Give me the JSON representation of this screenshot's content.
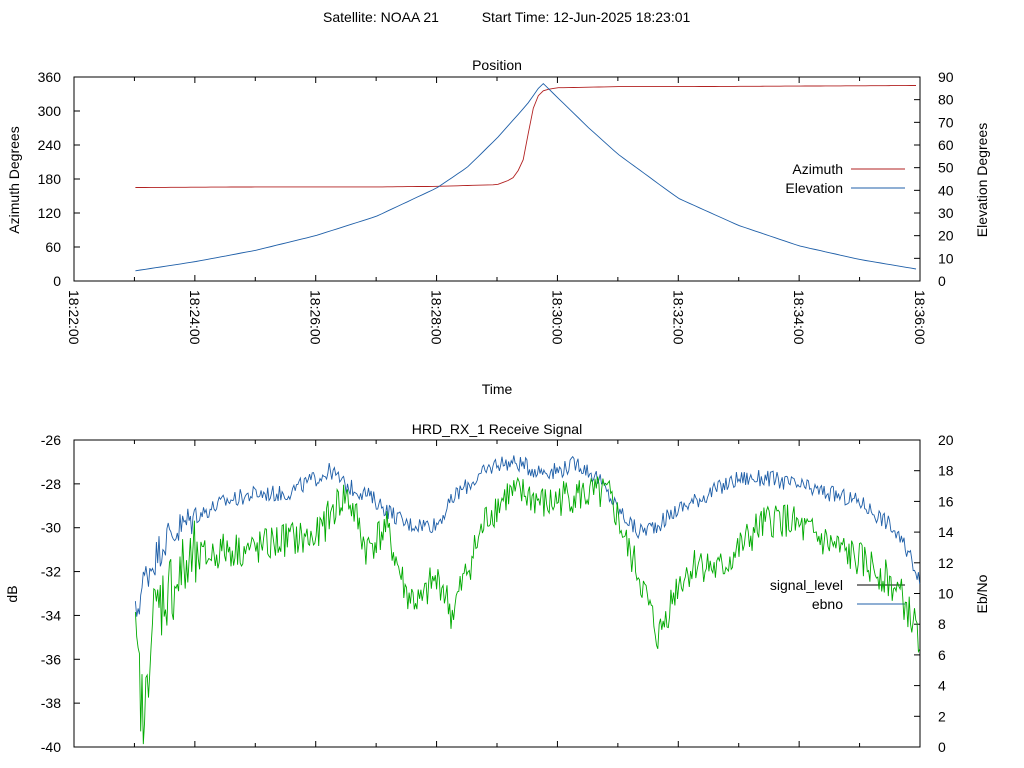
{
  "header": {
    "satellite": "Satellite: NOAA 21",
    "start_time": "Start Time: 12-Jun-2025 18:23:01"
  },
  "chart_data": [
    {
      "type": "line",
      "title": "Position",
      "xlabel": "Time",
      "ylabel": "Azimuth Degrees",
      "y2label": "Elevation Degrees",
      "xlim": [
        "18:22:00",
        "18:36:00"
      ],
      "ylim": [
        0,
        360
      ],
      "y2lim": [
        0,
        90
      ],
      "x_ticks": [
        "18:22:00",
        "18:24:00",
        "18:26:00",
        "18:28:00",
        "18:30:00",
        "18:32:00",
        "18:34:00",
        "18:36:00"
      ],
      "y_ticks": [
        "0",
        "60",
        "120",
        "180",
        "240",
        "300",
        "360"
      ],
      "y2_ticks": [
        "0",
        "10",
        "20",
        "30",
        "40",
        "50",
        "60",
        "70",
        "80",
        "90"
      ],
      "legend_position": "right",
      "series": [
        {
          "name": "Azimuth",
          "axis": "y",
          "color": "#b22222",
          "x": [
            "18:23:01",
            "18:25:00",
            "18:27:00",
            "18:28:00",
            "18:29:00",
            "18:29:15",
            "18:29:25",
            "18:29:30",
            "18:29:35",
            "18:29:40",
            "18:29:45",
            "18:29:50",
            "18:30:00",
            "18:30:30",
            "18:31:00",
            "18:32:00",
            "18:34:00",
            "18:36:00"
          ],
          "values": [
            165,
            166,
            166,
            167,
            170,
            180,
            205,
            250,
            300,
            325,
            335,
            338,
            341,
            342,
            343,
            343,
            344,
            345
          ]
        },
        {
          "name": "Elevation",
          "axis": "y2",
          "color": "#1f5fa8",
          "x": [
            "18:23:01",
            "18:24:00",
            "18:25:00",
            "18:26:00",
            "18:27:00",
            "18:28:00",
            "18:28:30",
            "18:29:00",
            "18:29:30",
            "18:29:45",
            "18:30:00",
            "18:30:30",
            "18:31:00",
            "18:32:00",
            "18:33:00",
            "18:34:00",
            "18:35:00",
            "18:36:00"
          ],
          "values": [
            4.5,
            8.5,
            13.5,
            20,
            28.5,
            41,
            50,
            63,
            78,
            87.5,
            81,
            68,
            56,
            36.5,
            24.5,
            15.5,
            9.5,
            5
          ]
        }
      ]
    },
    {
      "type": "line",
      "title": "HRD_RX_1 Receive Signal",
      "ylabel": "dB",
      "y2label": "Eb/No",
      "xlim": [
        "18:22:00",
        "18:36:00"
      ],
      "ylim": [
        -40,
        -26
      ],
      "y2lim": [
        0,
        20
      ],
      "y_ticks": [
        "-40",
        "-38",
        "-36",
        "-34",
        "-32",
        "-30",
        "-28",
        "-26"
      ],
      "y2_ticks": [
        "0",
        "2",
        "4",
        "6",
        "8",
        "10",
        "12",
        "14",
        "16",
        "18",
        "20"
      ],
      "legend_position": "right",
      "series": [
        {
          "name": "signal_level",
          "axis": "y",
          "color": "#000000",
          "legend_color": "#000000",
          "x": [],
          "values": []
        },
        {
          "name": "ebno",
          "axis": "y2",
          "color": "#1f5fa8",
          "x": [
            "18:23:01",
            "18:23:10",
            "18:23:30",
            "18:24:00",
            "18:24:30",
            "18:25:00",
            "18:25:30",
            "18:26:00",
            "18:26:15",
            "18:26:30",
            "18:26:50",
            "18:27:10",
            "18:27:30",
            "18:27:50",
            "18:28:00",
            "18:28:20",
            "18:28:40",
            "18:29:00",
            "18:29:20",
            "18:29:40",
            "18:30:00",
            "18:30:20",
            "18:30:40",
            "18:31:00",
            "18:31:20",
            "18:31:40",
            "18:32:00",
            "18:32:30",
            "18:33:00",
            "18:33:30",
            "18:34:00",
            "18:34:30",
            "18:35:00",
            "18:35:30",
            "18:35:50",
            "18:36:00"
          ],
          "values": [
            8.5,
            11,
            13.5,
            15,
            16,
            16.5,
            16.5,
            17.5,
            18,
            17,
            16.5,
            15.5,
            14.5,
            14.5,
            14.5,
            16.5,
            17.5,
            18.5,
            18.5,
            18,
            18,
            18.5,
            17.5,
            15.5,
            14,
            14.5,
            15.5,
            16.5,
            17.5,
            17.5,
            17,
            16.5,
            16,
            14.5,
            12.5,
            11
          ]
        },
        {
          "name": "",
          "axis": "y",
          "color": "#00aa00",
          "x": [
            "18:23:01",
            "18:23:05",
            "18:23:10",
            "18:23:15",
            "18:23:20",
            "18:23:30",
            "18:24:00",
            "18:24:30",
            "18:25:00",
            "18:25:30",
            "18:26:00",
            "18:26:20",
            "18:26:30",
            "18:26:40",
            "18:26:50",
            "18:27:00",
            "18:27:10",
            "18:27:20",
            "18:27:30",
            "18:27:45",
            "18:27:55",
            "18:28:05",
            "18:28:15",
            "18:28:30",
            "18:28:50",
            "18:29:10",
            "18:29:30",
            "18:29:50",
            "18:30:10",
            "18:30:30",
            "18:30:50",
            "18:31:00",
            "18:31:10",
            "18:31:20",
            "18:31:30",
            "18:31:40",
            "18:32:00",
            "18:32:20",
            "18:32:40",
            "18:33:00",
            "18:33:20",
            "18:33:40",
            "18:34:00",
            "18:34:20",
            "18:34:40",
            "18:35:00",
            "18:35:20",
            "18:35:40",
            "18:35:50",
            "18:36:00"
          ],
          "values": [
            -35.5,
            -37,
            -39.5,
            -35,
            -34,
            -33,
            -31.5,
            -31,
            -31,
            -30.5,
            -30.5,
            -29,
            -28.5,
            -29.5,
            -31,
            -30.5,
            -30,
            -31.5,
            -33,
            -33.5,
            -32.5,
            -32.5,
            -34,
            -32,
            -29.5,
            -28.5,
            -28.5,
            -29,
            -28.5,
            -28.5,
            -28.5,
            -29.5,
            -31,
            -32,
            -33.5,
            -35,
            -32.5,
            -31.5,
            -32,
            -31,
            -30,
            -29.5,
            -30,
            -30.5,
            -31,
            -31.5,
            -32,
            -33,
            -34,
            -35
          ]
        }
      ]
    }
  ]
}
